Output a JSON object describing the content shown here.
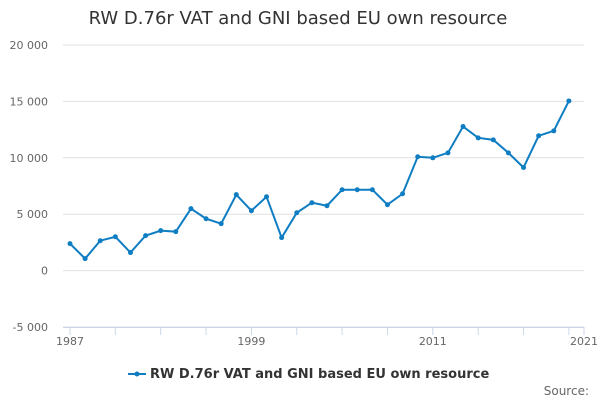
{
  "chart_data": {
    "type": "line",
    "title": "RW D.76r VAT and GNI based EU own resource",
    "xlabel": "",
    "ylabel": "",
    "x_tick_labels": [
      "1987",
      "1999",
      "2011",
      "2021"
    ],
    "y_tick_labels": [
      "20 000",
      "15 000",
      "10 000",
      "5 000",
      "0",
      "-5 000"
    ],
    "y_ticks": [
      20000,
      15000,
      10000,
      5000,
      0,
      -5000
    ],
    "ylim": [
      -5000,
      20000
    ],
    "xlim": [
      1987,
      2021
    ],
    "grid": true,
    "legend_position": "bottom",
    "source_label": "Source:",
    "color": "#0e7dc2",
    "series": [
      {
        "name": "RW D.76r VAT and GNI based EU own resource",
        "x": [
          1987,
          1988,
          1989,
          1990,
          1991,
          1992,
          1993,
          1994,
          1995,
          1996,
          1997,
          1998,
          1999,
          2000,
          2001,
          2002,
          2003,
          2004,
          2005,
          2006,
          2007,
          2008,
          2009,
          2010,
          2011,
          2012,
          2013,
          2014,
          2015,
          2016,
          2017,
          2018,
          2019,
          2020
        ],
        "values": [
          2390,
          1060,
          2650,
          3000,
          1600,
          3100,
          3540,
          3450,
          5490,
          4600,
          4160,
          6730,
          5310,
          6550,
          2920,
          5130,
          6020,
          5750,
          7170,
          7170,
          7170,
          5840,
          6810,
          10090,
          10000,
          10440,
          12770,
          11770,
          11590,
          10440,
          9140,
          11950,
          12390,
          15040
        ]
      }
    ]
  }
}
